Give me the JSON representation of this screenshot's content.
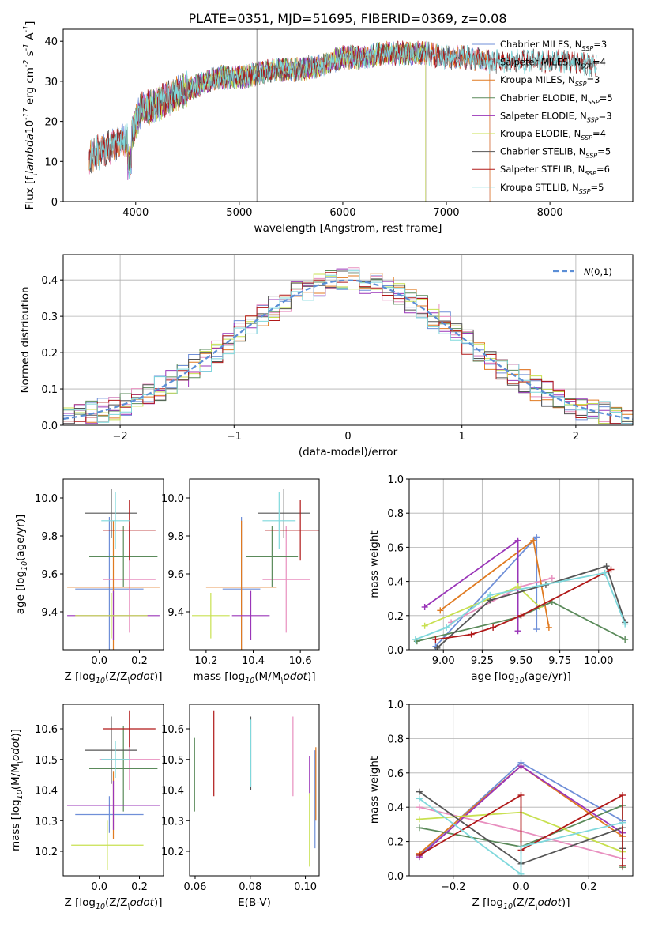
{
  "figure": {
    "title": "PLATE=0351, MJD=51695, FIBERID=0369, z=0.08"
  },
  "models": [
    {
      "label": "Chabrier MILES, N$_{SSP}$=3",
      "color": "#6f8fd8"
    },
    {
      "label": "Salpeter MILES, N$_{SSP}$=4",
      "color": "#e88fbf"
    },
    {
      "label": "Kroupa MILES, N$_{SSP}$=3",
      "color": "#e07a20"
    },
    {
      "label": "Chabrier ELODIE, N$_{SSP}$=5",
      "color": "#5a8a5a"
    },
    {
      "label": "Salpeter ELODIE, N$_{SSP}$=3",
      "color": "#9a35b8"
    },
    {
      "label": "Kroupa ELODIE, N$_{SSP}$=4",
      "color": "#c8e050"
    },
    {
      "label": "Chabrier STELIB, N$_{SSP}$=5",
      "color": "#555555"
    },
    {
      "label": "Salpeter STELIB, N$_{SSP}$=6",
      "color": "#b01818"
    },
    {
      "label": "Kroupa STELIB, N$_{SSP}$=5",
      "color": "#7fd8dc"
    }
  ],
  "chart_data": [
    {
      "type": "line",
      "title": "PLATE=0351, MJD=51695, FIBERID=0369, z=0.08",
      "xlabel": "wavelength [Angstrom, rest frame]",
      "ylabel": "Flux [f$_\\lambda$10$^{-17}$ erg cm$^{-2}$ s$^{-1}$ A$^{-1}$]",
      "xlim": [
        3300,
        8800
      ],
      "ylim": [
        0,
        43
      ],
      "xticks": [
        4000,
        5000,
        6000,
        7000,
        8000
      ],
      "yticks": [
        0,
        10,
        20,
        30,
        40
      ],
      "legend": "upper right",
      "spectrum_anchors": {
        "x": [
          3550,
          3700,
          3850,
          3950,
          4050,
          4200,
          4400,
          4600,
          4800,
          5000,
          5200,
          5400,
          5600,
          5800,
          6000,
          6200,
          6400,
          6600,
          6800,
          7000,
          7200,
          7400,
          7600,
          7800,
          8000,
          8200,
          8450
        ],
        "y": [
          11,
          13,
          15,
          16,
          23,
          24,
          27,
          29,
          31,
          31,
          32,
          33,
          33,
          34,
          36,
          36,
          37,
          37,
          37,
          36,
          36,
          35,
          35,
          35,
          35,
          35,
          34
        ]
      },
      "coverage": [
        {
          "model": "Chabrier MILES",
          "x": [
            3550,
            7420
          ]
        },
        {
          "model": "Salpeter MILES",
          "x": [
            3550,
            7420
          ]
        },
        {
          "model": "Kroupa MILES",
          "x": [
            3550,
            7420
          ]
        },
        {
          "model": "Chabrier ELODIE",
          "x": [
            3900,
            6800
          ]
        },
        {
          "model": "Salpeter ELODIE",
          "x": [
            3900,
            6800
          ]
        },
        {
          "model": "Kroupa ELODIE",
          "x": [
            3900,
            6800
          ]
        },
        {
          "model": "Chabrier STELIB",
          "x": [
            3550,
            8450
          ]
        },
        {
          "model": "Salpeter STELIB",
          "x": [
            3550,
            8450
          ]
        },
        {
          "model": "Kroupa STELIB",
          "x": [
            3550,
            8450
          ]
        }
      ]
    },
    {
      "type": "area",
      "xlabel": "(data-model)/error",
      "ylabel": "Normed distribution",
      "xlim": [
        -2.5,
        2.5
      ],
      "ylim": [
        0,
        0.47
      ],
      "xticks": [
        -2,
        -1,
        0,
        1,
        2
      ],
      "yticks": [
        0.0,
        0.1,
        0.2,
        0.3,
        0.4
      ],
      "grid": true,
      "legend": "upper right",
      "reference_label": "$\\mathcal{N}(0,1)$",
      "bin_width": 0.1,
      "reference": {
        "mean": 0,
        "sigma": 1
      }
    },
    {
      "type": "scatter",
      "xlabel": "Z [log$_{10}$(Z/Z$_\\odot$)]",
      "ylabel": "age  [log$_{10}$(age/yr)]",
      "xlim": [
        -0.18,
        0.32
      ],
      "ylim": [
        9.2,
        10.1
      ],
      "xticks": [
        0.0,
        0.2
      ],
      "yticks": [
        9.4,
        9.6,
        9.8,
        10.0
      ],
      "points": [
        {
          "model": "Chabrier MILES",
          "x": 0.05,
          "xerr": 0.17,
          "y": 9.52,
          "yerr": 0.38
        },
        {
          "model": "Salpeter MILES",
          "x": 0.15,
          "xerr": 0.13,
          "y": 9.57,
          "yerr": 0.28
        },
        {
          "model": "Kroupa MILES",
          "x": 0.07,
          "xerr": 0.23,
          "y": 9.53,
          "yerr": 0.35
        },
        {
          "model": "Chabrier ELODIE",
          "x": 0.12,
          "xerr": 0.17,
          "y": 9.69,
          "yerr": 0.16
        },
        {
          "model": "Salpeter ELODIE",
          "x": 0.07,
          "xerr": 0.23,
          "y": 9.38,
          "yerr": 0.13
        },
        {
          "model": "Kroupa ELODIE",
          "x": 0.06,
          "xerr": 0.18,
          "y": 9.38,
          "yerr": 0.12
        },
        {
          "model": "Chabrier STELIB",
          "x": 0.06,
          "xerr": 0.13,
          "y": 9.92,
          "yerr": 0.13
        },
        {
          "model": "Salpeter STELIB",
          "x": 0.15,
          "xerr": 0.13,
          "y": 9.83,
          "yerr": 0.16
        },
        {
          "model": "Kroupa STELIB",
          "x": 0.08,
          "xerr": 0.07,
          "y": 9.88,
          "yerr": 0.15
        }
      ]
    },
    {
      "type": "scatter",
      "xlabel": "mass [log$_{10}$(M/M$_\\odot$)]",
      "ylabel": "",
      "xlim": [
        10.13,
        10.68
      ],
      "ylim": [
        9.2,
        10.1
      ],
      "xticks": [
        10.2,
        10.4,
        10.6
      ],
      "yticks": [
        9.4,
        9.6,
        9.8,
        10.0
      ],
      "points": [
        {
          "model": "Chabrier MILES",
          "x": 10.35,
          "xerr": 0.08,
          "y": 9.52,
          "yerr": 0.38
        },
        {
          "model": "Salpeter MILES",
          "x": 10.54,
          "xerr": 0.1,
          "y": 9.57,
          "yerr": 0.28
        },
        {
          "model": "Kroupa MILES",
          "x": 10.35,
          "xerr": 0.15,
          "y": 9.53,
          "yerr": 0.35
        },
        {
          "model": "Chabrier ELODIE",
          "x": 10.48,
          "xerr": 0.11,
          "y": 9.69,
          "yerr": 0.16
        },
        {
          "model": "Salpeter ELODIE",
          "x": 10.39,
          "xerr": 0.08,
          "y": 9.38,
          "yerr": 0.13
        },
        {
          "model": "Kroupa ELODIE",
          "x": 10.22,
          "xerr": 0.08,
          "y": 9.38,
          "yerr": 0.12
        },
        {
          "model": "Chabrier STELIB",
          "x": 10.53,
          "xerr": 0.11,
          "y": 9.92,
          "yerr": 0.13
        },
        {
          "model": "Salpeter STELIB",
          "x": 10.6,
          "xerr": 0.15,
          "y": 9.83,
          "yerr": 0.16
        },
        {
          "model": "Kroupa STELIB",
          "x": 10.51,
          "xerr": 0.07,
          "y": 9.88,
          "yerr": 0.15
        }
      ]
    },
    {
      "type": "line",
      "xlabel": "age  [log$_{10}$(age/yr)]",
      "ylabel": "mass weight",
      "xlim": [
        8.78,
        10.22
      ],
      "ylim": [
        0,
        1.0
      ],
      "xticks": [
        9.0,
        9.25,
        9.5,
        9.75,
        10.0
      ],
      "yticks": [
        0.0,
        0.2,
        0.4,
        0.6,
        0.8,
        1.0
      ],
      "grid": true,
      "series": [
        {
          "model": "Chabrier MILES",
          "x": [
            8.95,
            9.6,
            9.6
          ],
          "y": [
            0.02,
            0.66,
            0.12
          ]
        },
        {
          "model": "Salpeter MILES",
          "x": [
            9.05,
            9.5,
            9.7
          ],
          "y": [
            0.16,
            0.37,
            0.42
          ]
        },
        {
          "model": "Kroupa MILES",
          "x": [
            8.98,
            9.58,
            9.68
          ],
          "y": [
            0.23,
            0.64,
            0.13
          ]
        },
        {
          "model": "Chabrier ELODIE",
          "x": [
            8.83,
            9.48,
            9.7,
            10.17
          ],
          "y": [
            0.05,
            0.19,
            0.28,
            0.06
          ]
        },
        {
          "model": "Salpeter ELODIE",
          "x": [
            8.88,
            9.48,
            9.48
          ],
          "y": [
            0.25,
            0.64,
            0.11
          ]
        },
        {
          "model": "Kroupa ELODIE",
          "x": [
            8.88,
            9.48,
            9.62
          ],
          "y": [
            0.14,
            0.37,
            0.25
          ]
        },
        {
          "model": "Chabrier STELIB",
          "x": [
            8.96,
            9.3,
            9.66,
            10.05,
            10.17
          ],
          "y": [
            0.01,
            0.29,
            0.38,
            0.49,
            0.16
          ]
        },
        {
          "model": "Salpeter STELIB",
          "x": [
            8.95,
            9.18,
            9.32,
            9.5,
            10.08
          ],
          "y": [
            0.06,
            0.09,
            0.13,
            0.2,
            0.47
          ]
        },
        {
          "model": "Kroupa STELIB",
          "x": [
            8.82,
            9.02,
            9.3,
            10.04,
            10.17
          ],
          "y": [
            0.06,
            0.13,
            0.32,
            0.45,
            0.15
          ]
        }
      ]
    },
    {
      "type": "scatter",
      "xlabel": "Z [log$_{10}$(Z/Z$_\\odot$)]",
      "ylabel": "mass [log$_{10}$(M/M$_\\odot$)]",
      "xlim": [
        -0.18,
        0.32
      ],
      "ylim": [
        10.12,
        10.68
      ],
      "xticks": [
        0.0,
        0.2
      ],
      "yticks": [
        10.2,
        10.3,
        10.4,
        10.5,
        10.6
      ],
      "points": [
        {
          "model": "Chabrier MILES",
          "x": 0.05,
          "xerr": 0.17,
          "y": 10.32,
          "yerr": 0.06
        },
        {
          "model": "Salpeter MILES",
          "x": 0.15,
          "xerr": 0.15,
          "y": 10.5,
          "yerr": 0.1
        },
        {
          "model": "Kroupa MILES",
          "x": 0.07,
          "xerr": 0.23,
          "y": 10.35,
          "yerr": 0.11
        },
        {
          "model": "Chabrier ELODIE",
          "x": 0.12,
          "xerr": 0.17,
          "y": 10.47,
          "yerr": 0.14
        },
        {
          "model": "Salpeter ELODIE",
          "x": 0.07,
          "xerr": 0.23,
          "y": 10.35,
          "yerr": 0.08
        },
        {
          "model": "Kroupa ELODIE",
          "x": 0.04,
          "xerr": 0.18,
          "y": 10.22,
          "yerr": 0.08
        },
        {
          "model": "Chabrier STELIB",
          "x": 0.06,
          "xerr": 0.13,
          "y": 10.53,
          "yerr": 0.11
        },
        {
          "model": "Salpeter STELIB",
          "x": 0.15,
          "xerr": 0.13,
          "y": 10.6,
          "yerr": 0.06
        },
        {
          "model": "Kroupa STELIB",
          "x": 0.08,
          "xerr": 0.07,
          "y": 10.5,
          "yerr": 0.06
        }
      ]
    },
    {
      "type": "scatter",
      "xlabel": "E(B-V)",
      "ylabel": "",
      "xlim": [
        0.058,
        0.105
      ],
      "ylim": [
        10.12,
        10.68
      ],
      "xticks": [
        0.06,
        0.08,
        0.1
      ],
      "yticks": [
        10.2,
        10.3,
        10.4,
        10.5,
        10.6
      ],
      "points": [
        {
          "model": "Chabrier MILES",
          "x": 0.1035,
          "y": 10.37,
          "yerr": 0.16
        },
        {
          "model": "Salpeter MILES",
          "x": 0.0955,
          "y": 10.51,
          "yerr": 0.13
        },
        {
          "model": "Kroupa MILES",
          "x": 0.1038,
          "y": 10.42,
          "yerr": 0.12
        },
        {
          "model": "Chabrier ELODIE",
          "x": 0.0598,
          "y": 10.45,
          "yerr": 0.12
        },
        {
          "model": "Salpeter ELODIE",
          "x": 0.1015,
          "y": 10.45,
          "yerr": 0.06
        },
        {
          "model": "Kroupa ELODIE",
          "x": 0.1015,
          "y": 10.27,
          "yerr": 0.12
        },
        {
          "model": "Chabrier STELIB",
          "x": 0.0802,
          "y": 10.52,
          "yerr": 0.12
        },
        {
          "model": "Salpeter STELIB",
          "x": 0.0668,
          "y": 10.52,
          "yerr": 0.14
        },
        {
          "model": "Kroupa STELIB",
          "x": 0.0802,
          "y": 10.52,
          "yerr": 0.11
        }
      ]
    },
    {
      "type": "line",
      "xlabel": "Z [log$_{10}$(Z/Z$_\\odot$)]",
      "ylabel": "mass weight",
      "xlim": [
        -0.33,
        0.33
      ],
      "ylim": [
        0,
        1.0
      ],
      "xticks": [
        -0.2,
        0.0,
        0.2
      ],
      "yticks": [
        0.0,
        0.2,
        0.4,
        0.6,
        0.8,
        1.0
      ],
      "grid": true,
      "series": [
        {
          "model": "Chabrier MILES",
          "x": [
            -0.3,
            0.0,
            0.3
          ],
          "y": [
            0.12,
            0.66,
            0.32
          ]
        },
        {
          "model": "Salpeter MILES",
          "x": [
            -0.3,
            0.0,
            0.3
          ],
          "y": [
            0.4,
            0.26,
            0.1
          ]
        },
        {
          "model": "Kroupa MILES",
          "x": [
            -0.3,
            0.0,
            0.3
          ],
          "y": [
            0.13,
            0.64,
            0.23
          ]
        },
        {
          "model": "Chabrier ELODIE",
          "x": [
            -0.3,
            0.0,
            0.3,
            0.3
          ],
          "y": [
            0.28,
            0.17,
            0.41,
            0.05
          ]
        },
        {
          "model": "Salpeter ELODIE",
          "x": [
            -0.3,
            0.0,
            0.3
          ],
          "y": [
            0.11,
            0.64,
            0.25
          ]
        },
        {
          "model": "Kroupa ELODIE",
          "x": [
            -0.3,
            0.0,
            0.3
          ],
          "y": [
            0.33,
            0.37,
            0.14
          ]
        },
        {
          "model": "Chabrier STELIB",
          "x": [
            -0.3,
            0.0,
            0.3,
            0.3
          ],
          "y": [
            0.49,
            0.07,
            0.28,
            0.16
          ]
        },
        {
          "model": "Salpeter STELIB",
          "x": [
            -0.3,
            0.0,
            0.0,
            0.3,
            0.3
          ],
          "y": [
            0.12,
            0.47,
            0.15,
            0.47,
            0.06
          ]
        },
        {
          "model": "Kroupa STELIB",
          "x": [
            -0.3,
            0.0,
            0.0,
            0.3
          ],
          "y": [
            0.45,
            0.01,
            0.17,
            0.31
          ]
        }
      ]
    }
  ]
}
